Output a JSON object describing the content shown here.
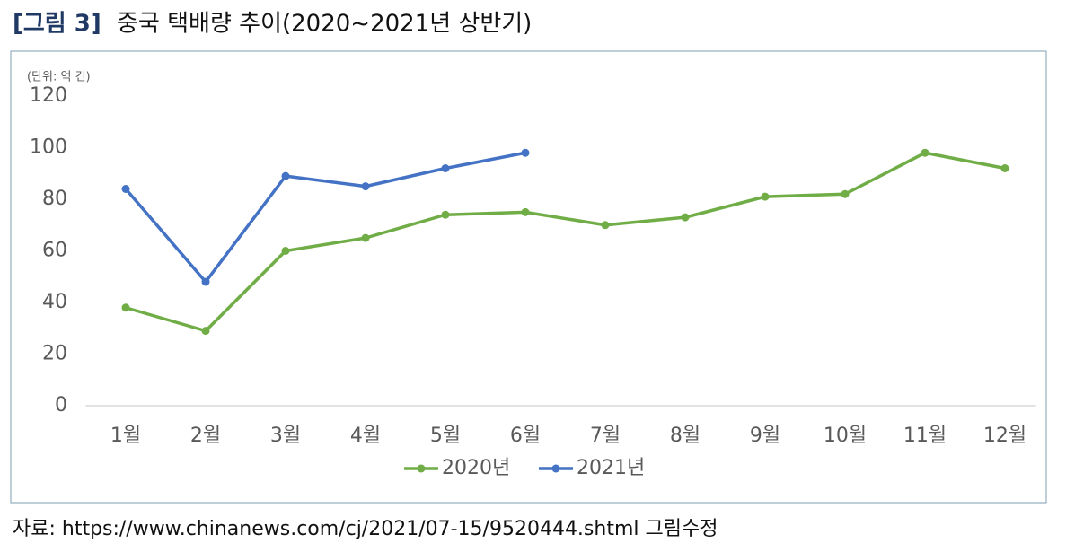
{
  "figure_label": "[그림 3]",
  "title": "중국 택배량 추이(2020~2021년 상반기)",
  "source": "자료: https://www.chinanews.com/cj/2021/07-15/9520444.shtml 그림수정",
  "chart_data": {
    "type": "line",
    "unit_label": "(단위: 억 건)",
    "categories": [
      "1월",
      "2월",
      "3월",
      "4월",
      "5월",
      "6월",
      "7월",
      "8월",
      "9월",
      "10월",
      "11월",
      "12월"
    ],
    "series": [
      {
        "name": "2020년",
        "color": "#70ad47",
        "values": [
          38,
          29,
          60,
          65,
          74,
          75,
          70,
          73,
          81,
          82,
          98,
          92
        ]
      },
      {
        "name": "2021년",
        "color": "#4472c4",
        "values": [
          84,
          48,
          89,
          85,
          92,
          98,
          null,
          null,
          null,
          null,
          null,
          null
        ]
      }
    ],
    "ylim": [
      0,
      120
    ],
    "yticks": [
      0,
      20,
      40,
      60,
      80,
      100,
      120
    ],
    "grid": false,
    "legend": "bottom"
  }
}
